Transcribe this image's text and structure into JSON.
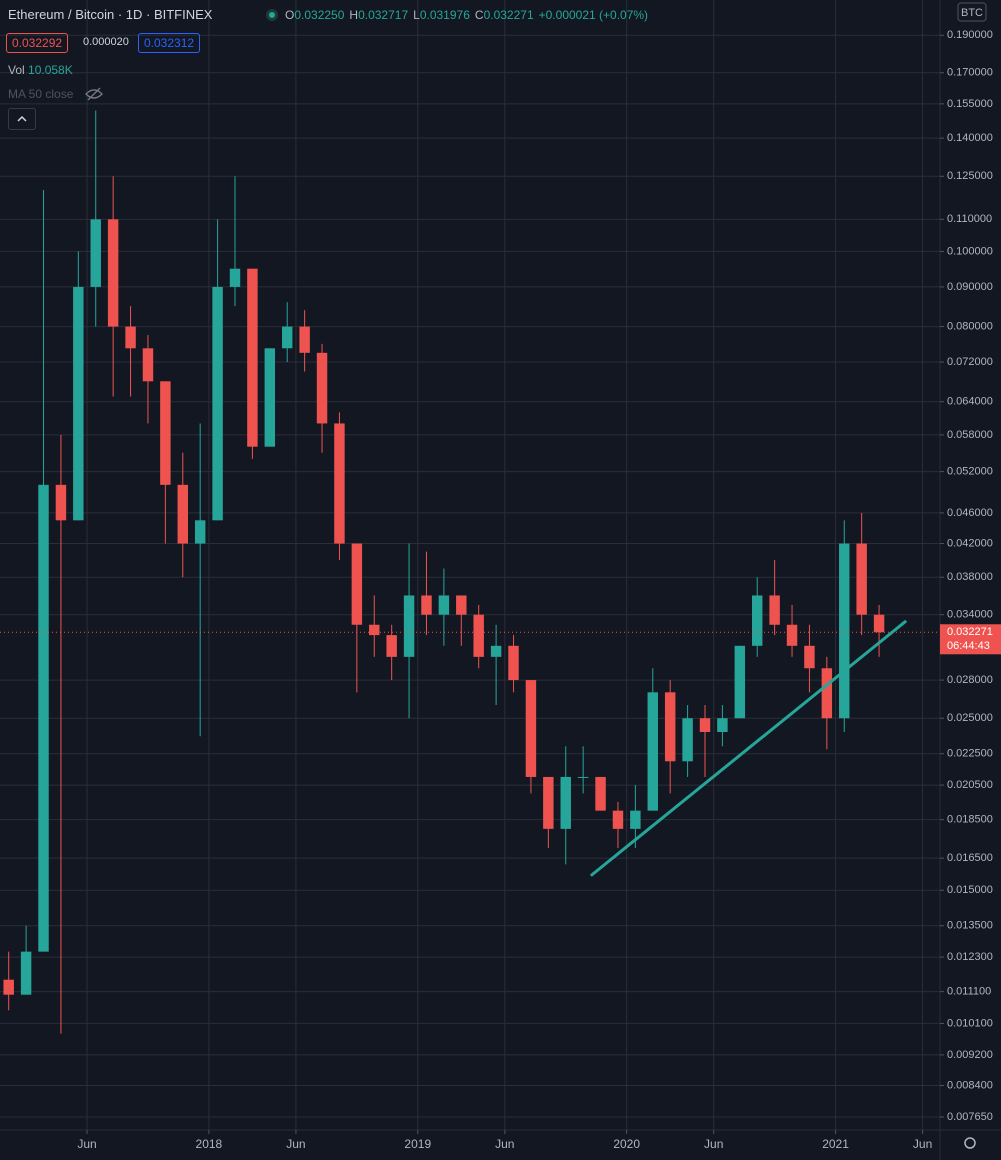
{
  "header": {
    "title": "Ethereum / Bitcoin · 1D · BITFINEX",
    "ohlc": [
      {
        "label": "O",
        "value": "0.032250"
      },
      {
        "label": "H",
        "value": "0.032717"
      },
      {
        "label": "L",
        "value": "0.031976"
      },
      {
        "label": "C",
        "value": "0.032271"
      }
    ],
    "change": "+0.000021 (+0.07%)",
    "bid": "0.032292",
    "spread": "0.000020",
    "ask": "0.032312",
    "volume_label": "Vol",
    "volume_value": "10.058K",
    "ma_label": "MA 50 close"
  },
  "currency": "BTC",
  "chart_data": {
    "type": "candlestick",
    "log_scale": true,
    "grid": true,
    "up_color": "#26a69a",
    "down_color": "#ef5350",
    "categories": [
      "2017-01",
      "2017-02",
      "2017-03",
      "2017-04",
      "2017-05",
      "2017-06",
      "2017-07",
      "2017-08",
      "2017-09",
      "2017-10",
      "2017-11",
      "2017-12",
      "2018-01",
      "2018-02",
      "2018-03",
      "2018-04",
      "2018-05",
      "2018-06",
      "2018-07",
      "2018-08",
      "2018-09",
      "2018-10",
      "2018-11",
      "2018-12",
      "2019-01",
      "2019-02",
      "2019-03",
      "2019-04",
      "2019-05",
      "2019-06",
      "2019-07",
      "2019-08",
      "2019-09",
      "2019-10",
      "2019-11",
      "2019-12",
      "2020-01",
      "2020-02",
      "2020-03",
      "2020-04",
      "2020-05",
      "2020-06",
      "2020-07",
      "2020-08",
      "2020-09",
      "2020-10",
      "2020-11",
      "2020-12",
      "2021-01",
      "2021-02",
      "2021-03"
    ],
    "open": [
      0.0115,
      0.011,
      0.0125,
      0.05,
      0.045,
      0.09,
      0.11,
      0.08,
      0.075,
      0.068,
      0.05,
      0.042,
      0.045,
      0.09,
      0.095,
      0.056,
      0.075,
      0.08,
      0.074,
      0.06,
      0.042,
      0.033,
      0.032,
      0.03,
      0.036,
      0.034,
      0.036,
      0.034,
      0.03,
      0.031,
      0.028,
      0.021,
      0.018,
      0.021,
      0.021,
      0.019,
      0.018,
      0.019,
      0.027,
      0.022,
      0.025,
      0.024,
      0.025,
      0.031,
      0.036,
      0.033,
      0.031,
      0.029,
      0.025,
      0.042,
      0.034
    ],
    "high": [
      0.0125,
      0.0135,
      0.12,
      0.058,
      0.1,
      0.152,
      0.125,
      0.085,
      0.078,
      0.068,
      0.055,
      0.06,
      0.11,
      0.125,
      0.095,
      0.075,
      0.086,
      0.084,
      0.076,
      0.062,
      0.042,
      0.036,
      0.033,
      0.042,
      0.041,
      0.039,
      0.036,
      0.035,
      0.033,
      0.032,
      0.028,
      0.021,
      0.023,
      0.023,
      0.021,
      0.0195,
      0.0205,
      0.029,
      0.028,
      0.026,
      0.026,
      0.026,
      0.031,
      0.038,
      0.04,
      0.035,
      0.033,
      0.03,
      0.045,
      0.046,
      0.035
    ],
    "low": [
      0.0105,
      0.011,
      0.0125,
      0.0098,
      0.045,
      0.08,
      0.065,
      0.065,
      0.06,
      0.042,
      0.038,
      0.0237,
      0.045,
      0.085,
      0.054,
      0.056,
      0.072,
      0.07,
      0.055,
      0.04,
      0.027,
      0.03,
      0.028,
      0.025,
      0.032,
      0.031,
      0.031,
      0.029,
      0.026,
      0.027,
      0.02,
      0.017,
      0.0162,
      0.02,
      0.019,
      0.017,
      0.017,
      0.019,
      0.02,
      0.021,
      0.021,
      0.023,
      0.025,
      0.03,
      0.032,
      0.03,
      0.027,
      0.0228,
      0.024,
      0.032,
      0.03
    ],
    "close": [
      0.011,
      0.0125,
      0.05,
      0.045,
      0.09,
      0.11,
      0.08,
      0.075,
      0.068,
      0.05,
      0.042,
      0.045,
      0.09,
      0.095,
      0.056,
      0.075,
      0.08,
      0.074,
      0.06,
      0.042,
      0.033,
      0.032,
      0.03,
      0.036,
      0.034,
      0.036,
      0.034,
      0.03,
      0.031,
      0.028,
      0.021,
      0.018,
      0.021,
      0.021,
      0.019,
      0.018,
      0.019,
      0.027,
      0.022,
      0.025,
      0.024,
      0.025,
      0.031,
      0.036,
      0.033,
      0.031,
      0.029,
      0.025,
      0.042,
      0.034,
      0.032271
    ],
    "countdown": "06:44:43",
    "trendline": {
      "color": "#26a69a",
      "points": [
        {
          "x": "2019-11",
          "y": 0.0157
        },
        {
          "x": "2021-05",
          "y": 0.0333
        }
      ]
    },
    "xlim": [
      "2017-01",
      "2021-07"
    ],
    "xticks": [
      {
        "value": "2017-06",
        "label": "Jun"
      },
      {
        "value": "2018-01",
        "label": "2018"
      },
      {
        "value": "2018-06",
        "label": "Jun"
      },
      {
        "value": "2019-01",
        "label": "2019"
      },
      {
        "value": "2019-06",
        "label": "Jun"
      },
      {
        "value": "2020-01",
        "label": "2020"
      },
      {
        "value": "2020-06",
        "label": "Jun"
      },
      {
        "value": "2021-01",
        "label": "2021"
      },
      {
        "value": "2021-06",
        "label": "Jun"
      }
    ],
    "ylim": [
      0.00736,
      0.211
    ],
    "yticks": [
      {
        "value": 0.19,
        "label": "0.190000"
      },
      {
        "value": 0.17,
        "label": "0.170000"
      },
      {
        "value": 0.155,
        "label": "0.155000"
      },
      {
        "value": 0.14,
        "label": "0.140000"
      },
      {
        "value": 0.125,
        "label": "0.125000"
      },
      {
        "value": 0.11,
        "label": "0.110000"
      },
      {
        "value": 0.1,
        "label": "0.100000"
      },
      {
        "value": 0.09,
        "label": "0.090000"
      },
      {
        "value": 0.08,
        "label": "0.080000"
      },
      {
        "value": 0.072,
        "label": "0.072000"
      },
      {
        "value": 0.064,
        "label": "0.064000"
      },
      {
        "value": 0.058,
        "label": "0.058000"
      },
      {
        "value": 0.052,
        "label": "0.052000"
      },
      {
        "value": 0.046,
        "label": "0.046000"
      },
      {
        "value": 0.042,
        "label": "0.042000"
      },
      {
        "value": 0.038,
        "label": "0.038000"
      },
      {
        "value": 0.034,
        "label": "0.034000"
      },
      {
        "value": 0.028,
        "label": "0.028000"
      },
      {
        "value": 0.025,
        "label": "0.025000"
      },
      {
        "value": 0.0225,
        "label": "0.022500"
      },
      {
        "value": 0.0205,
        "label": "0.020500"
      },
      {
        "value": 0.0185,
        "label": "0.018500"
      },
      {
        "value": 0.0165,
        "label": "0.016500"
      },
      {
        "value": 0.015,
        "label": "0.015000"
      },
      {
        "value": 0.0135,
        "label": "0.013500"
      },
      {
        "value": 0.0123,
        "label": "0.012300"
      },
      {
        "value": 0.0111,
        "label": "0.011100"
      },
      {
        "value": 0.0101,
        "label": "0.010100"
      },
      {
        "value": 0.0092,
        "label": "0.009200"
      },
      {
        "value": 0.0084,
        "label": "0.008400"
      },
      {
        "value": 0.00765,
        "label": "0.007650"
      }
    ]
  }
}
